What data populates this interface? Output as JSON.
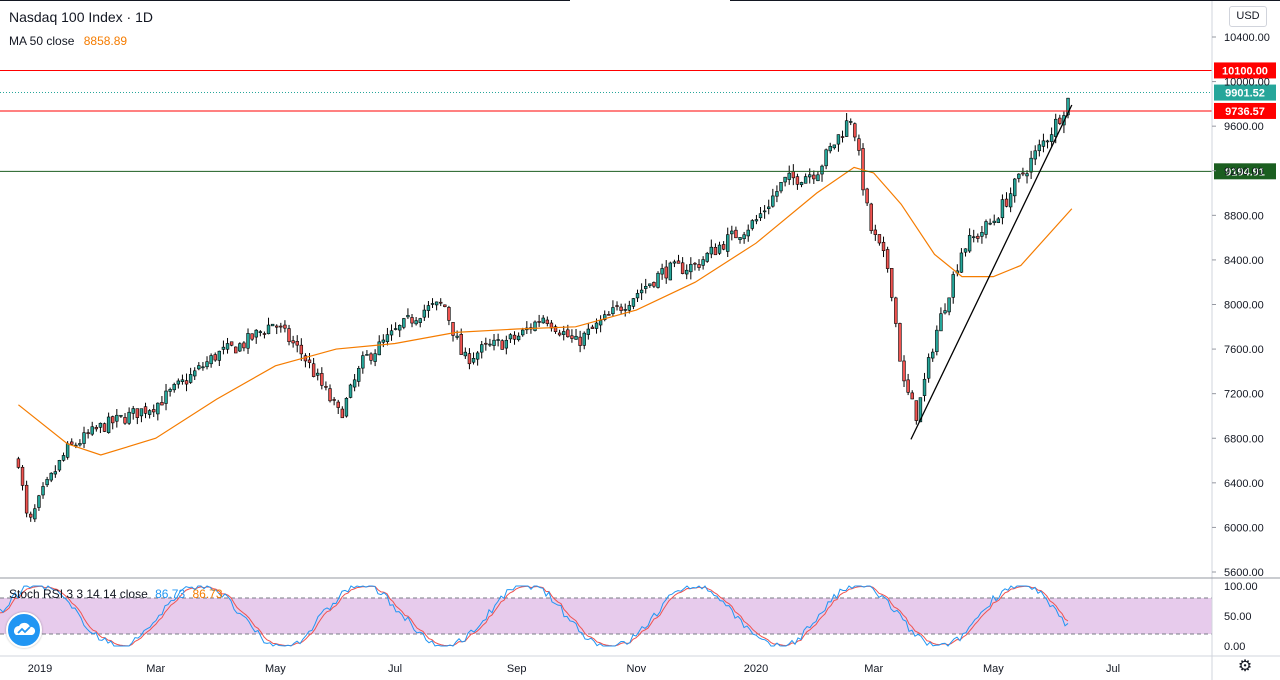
{
  "header": {
    "title": "Nasdaq 100 Index · 1D",
    "ma_label": "MA 50 close",
    "ma_value": "8858.89",
    "currency": "USD"
  },
  "stoch": {
    "label": "Stoch RSI 3 3 14 14 close",
    "k_value": "86.73",
    "d_value": "86.73"
  },
  "colors": {
    "up": "#26a69a",
    "down": "#ef5350",
    "candle_body": "#000000",
    "ma": "#f57c00",
    "k_line": "#2196f3",
    "d_line": "#ef5350",
    "stoch_band": "#e1bee7",
    "red_line": "#ff0000",
    "green_line": "#1b5e20"
  },
  "icons": {
    "logo": "tradingview-cloud-icon",
    "settings": "gear-icon"
  },
  "chart_data": {
    "type": "line",
    "title": "Nasdaq 100 Index · 1D",
    "xlabel": "",
    "ylabel": "",
    "ylim": [
      5600,
      10600
    ],
    "y_ticks": [
      "10400.00",
      "10000.00",
      "9600.00",
      "9200.00",
      "8800.00",
      "8400.00",
      "8000.00",
      "7600.00",
      "7200.00",
      "6800.00",
      "6400.00",
      "6000.00",
      "5600.00"
    ],
    "x_tick_labels": [
      {
        "label": "2019",
        "date": "2019-01"
      },
      {
        "label": "Mar",
        "date": "2019-03"
      },
      {
        "label": "May",
        "date": "2019-05"
      },
      {
        "label": "Jul",
        "date": "2019-07"
      },
      {
        "label": "Sep",
        "date": "2019-09"
      },
      {
        "label": "Nov",
        "date": "2019-11"
      },
      {
        "label": "2020",
        "date": "2020-01"
      },
      {
        "label": "Mar",
        "date": "2020-03"
      },
      {
        "label": "May",
        "date": "2020-05"
      },
      {
        "label": "Jul",
        "date": "2020-07"
      }
    ],
    "series": [
      {
        "name": "",
        "dates": [
          "2018-12-21",
          "2018-12-26",
          "2019-01-02",
          "2019-01-15",
          "2019-02-01",
          "2019-02-15",
          "2019-03-01",
          "2019-03-15",
          "2019-04-01",
          "2019-04-15",
          "2019-04-30",
          "2019-05-15",
          "2019-06-03",
          "2019-06-15",
          "2019-07-01",
          "2019-07-15",
          "2019-07-26",
          "2019-08-05",
          "2019-08-15",
          "2019-09-01",
          "2019-09-15",
          "2019-10-01",
          "2019-10-15",
          "2019-11-01",
          "2019-11-15",
          "2019-12-01",
          "2019-12-15",
          "2020-01-01",
          "2020-01-15",
          "2020-02-01",
          "2020-02-19",
          "2020-02-28",
          "2020-03-09",
          "2020-03-16",
          "2020-03-23",
          "2020-04-01",
          "2020-04-15",
          "2020-05-01",
          "2020-05-15",
          "2020-06-01",
          "2020-06-10"
        ],
        "values": [
          6600,
          6000,
          6300,
          6700,
          6900,
          7000,
          7100,
          7300,
          7550,
          7650,
          7840,
          7550,
          7000,
          7500,
          7750,
          7950,
          8000,
          7500,
          7600,
          7700,
          7900,
          7650,
          7850,
          8100,
          8300,
          8350,
          8550,
          8750,
          9100,
          9200,
          9700,
          8700,
          8300,
          7300,
          7000,
          7700,
          8500,
          8750,
          9150,
          9600,
          9901.52
        ]
      },
      {
        "name": "MA 50 close",
        "dates": [
          "2018-12-21",
          "2019-01-15",
          "2019-02-01",
          "2019-03-01",
          "2019-04-01",
          "2019-05-01",
          "2019-06-01",
          "2019-07-01",
          "2019-08-01",
          "2019-09-01",
          "2019-10-01",
          "2019-11-01",
          "2019-12-01",
          "2020-01-01",
          "2020-02-01",
          "2020-02-20",
          "2020-03-01",
          "2020-03-15",
          "2020-04-01",
          "2020-04-15",
          "2020-05-01",
          "2020-05-15",
          "2020-06-10"
        ],
        "values": [
          7100,
          6750,
          6650,
          6800,
          7150,
          7450,
          7600,
          7650,
          7750,
          7780,
          7800,
          7950,
          8200,
          8550,
          9000,
          9230,
          9180,
          8900,
          8450,
          8250,
          8250,
          8350,
          8858.89
        ]
      }
    ],
    "price_levels": [
      {
        "label": "10100.00",
        "value": 10100,
        "color": "#ff0000"
      },
      {
        "label": "9901.52",
        "value": 9901.52,
        "color": "#26a69a"
      },
      {
        "label": "9736.57",
        "value": 9736.57,
        "color": "#ff0000"
      },
      {
        "label": "9194.91",
        "value": 9194.91,
        "color": "#1b5e20"
      }
    ],
    "trendline": {
      "start": {
        "date": "2020-03-20",
        "value": 6790
      },
      "end": {
        "date": "2020-06-10",
        "value": 9790
      }
    },
    "stoch_panel": {
      "ylim": [
        0,
        100
      ],
      "y_ticks": [
        "100.00",
        "50.00",
        "0.00"
      ],
      "band": [
        20,
        80
      ]
    }
  }
}
